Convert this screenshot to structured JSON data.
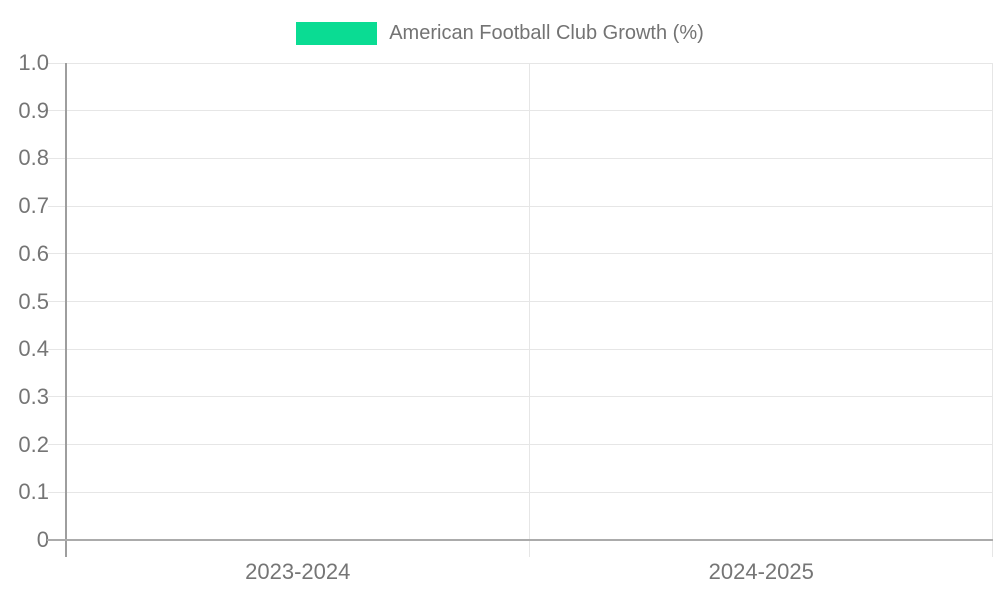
{
  "legend": {
    "swatch_color": "#0adc93",
    "label": "American Football Club Growth (%)"
  },
  "colors": {
    "series_green": "#0adc93",
    "gridline": "#e6e6e6",
    "axis_line_y": "#9e9e9e",
    "axis_line_x": "#ababab",
    "tick_label": "#757575",
    "legend_text": "#737373",
    "background": "#ffffff"
  },
  "chart_data": {
    "type": "bar",
    "title": "American Football Club Growth (%)",
    "categories": [
      "2023-2024",
      "2024-2025"
    ],
    "series": [
      {
        "name": "American Football Club Growth (%)",
        "color": "#0adc93",
        "values": [
          0,
          0
        ]
      }
    ],
    "xlabel": "",
    "ylabel": "",
    "ylim": [
      0,
      1.0
    ],
    "ytick_values": [
      0,
      0.1,
      0.2,
      0.3,
      0.4,
      0.5,
      0.6,
      0.7,
      0.8,
      0.9,
      1.0
    ],
    "ytick_labels": [
      "0",
      "0.1",
      "0.2",
      "0.3",
      "0.4",
      "0.5",
      "0.6",
      "0.7",
      "0.8",
      "0.9",
      "1.0"
    ],
    "grid": true,
    "legend_position": "top-center",
    "notes": "no bars visible; all series values are 0"
  }
}
